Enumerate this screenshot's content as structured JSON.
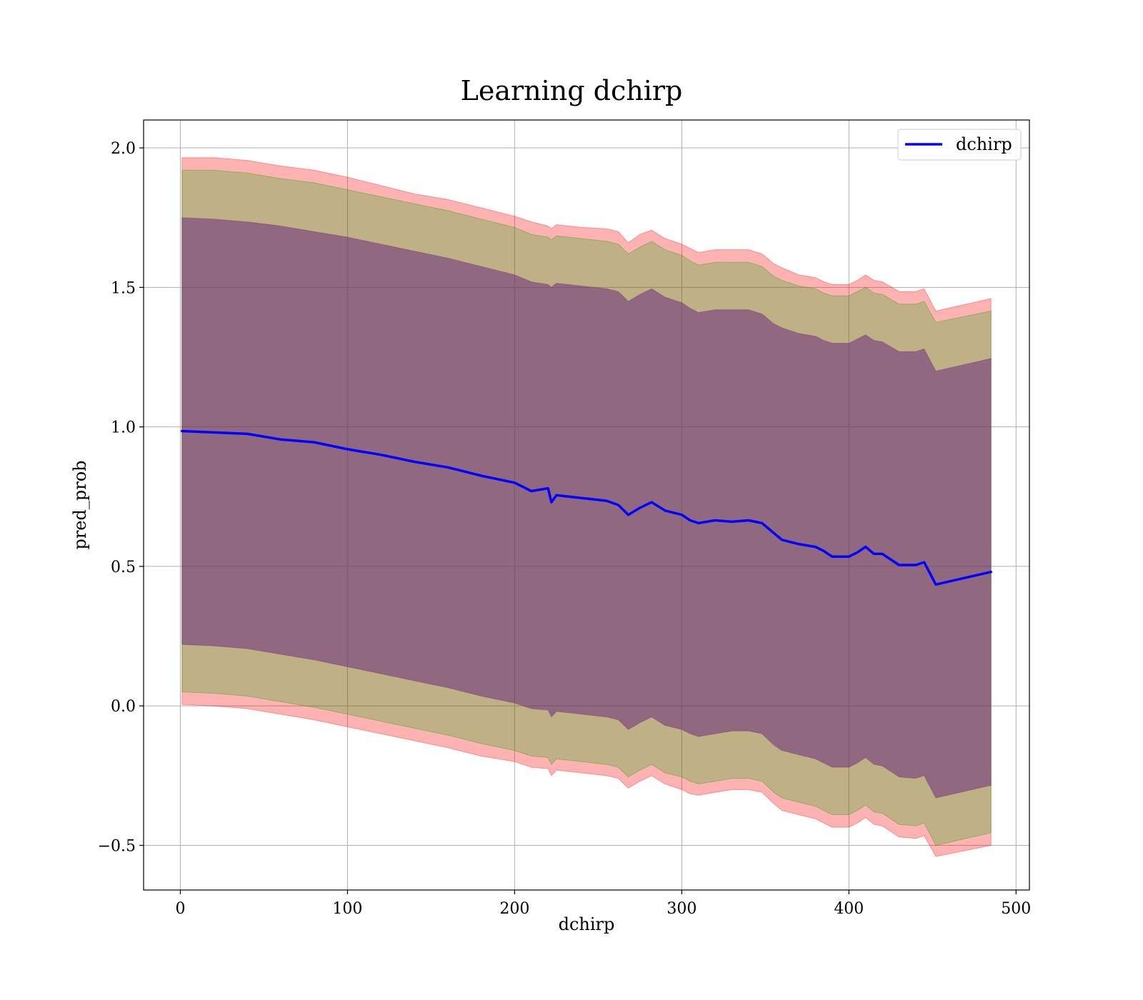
{
  "chart_data": {
    "type": "line",
    "title": "Learning dchirp",
    "xlabel": "dchirp",
    "ylabel": "pred_prob",
    "xlim": [
      -22,
      508
    ],
    "ylim": [
      -0.66,
      2.1
    ],
    "grid": true,
    "legend_position": "top-right",
    "x_ticks": [
      0,
      100,
      200,
      300,
      400,
      500
    ],
    "x_tick_labels": [
      "0",
      "100",
      "200",
      "300",
      "400",
      "500"
    ],
    "y_ticks": [
      -0.5,
      0.0,
      0.5,
      1.0,
      1.5,
      2.0
    ],
    "y_tick_labels": [
      "−0.5",
      "0.0",
      "0.5",
      "1.0",
      "1.5",
      "2.0"
    ],
    "x": [
      1,
      20,
      40,
      60,
      80,
      100,
      120,
      140,
      160,
      180,
      200,
      210,
      220,
      222,
      225,
      240,
      255,
      262,
      268,
      275,
      282,
      290,
      300,
      305,
      310,
      320,
      330,
      340,
      348,
      355,
      360,
      370,
      380,
      385,
      390,
      400,
      405,
      410,
      415,
      420,
      430,
      440,
      445,
      452,
      485
    ],
    "series": [
      {
        "name": "dchirp",
        "color": "#0000ff",
        "values": [
          0.985,
          0.98,
          0.975,
          0.955,
          0.945,
          0.92,
          0.9,
          0.875,
          0.855,
          0.825,
          0.8,
          0.77,
          0.78,
          0.73,
          0.755,
          0.745,
          0.735,
          0.72,
          0.685,
          0.71,
          0.73,
          0.7,
          0.685,
          0.665,
          0.655,
          0.665,
          0.66,
          0.665,
          0.655,
          0.62,
          0.595,
          0.58,
          0.57,
          0.555,
          0.535,
          0.535,
          0.55,
          0.57,
          0.545,
          0.545,
          0.505,
          0.505,
          0.515,
          0.435,
          0.48
        ]
      }
    ],
    "bands": [
      {
        "color": "#ff0000",
        "opacity": 0.3,
        "upper": [
          1.965,
          1.965,
          1.955,
          1.935,
          1.92,
          1.895,
          1.865,
          1.835,
          1.815,
          1.785,
          1.755,
          1.735,
          1.72,
          1.71,
          1.725,
          1.715,
          1.71,
          1.7,
          1.66,
          1.69,
          1.705,
          1.675,
          1.655,
          1.64,
          1.625,
          1.635,
          1.635,
          1.635,
          1.62,
          1.585,
          1.57,
          1.545,
          1.535,
          1.52,
          1.51,
          1.51,
          1.525,
          1.545,
          1.525,
          1.52,
          1.485,
          1.485,
          1.495,
          1.415,
          1.46
        ],
        "lower": [
          0.005,
          0.0,
          -0.01,
          -0.03,
          -0.05,
          -0.075,
          -0.1,
          -0.125,
          -0.15,
          -0.18,
          -0.2,
          -0.22,
          -0.225,
          -0.25,
          -0.23,
          -0.24,
          -0.25,
          -0.26,
          -0.295,
          -0.27,
          -0.25,
          -0.28,
          -0.3,
          -0.315,
          -0.32,
          -0.31,
          -0.3,
          -0.3,
          -0.31,
          -0.35,
          -0.375,
          -0.39,
          -0.405,
          -0.42,
          -0.435,
          -0.435,
          -0.42,
          -0.4,
          -0.425,
          -0.43,
          -0.47,
          -0.475,
          -0.465,
          -0.54,
          -0.5
        ]
      },
      {
        "color": "#00aa00",
        "opacity": 0.25,
        "upper": [
          1.92,
          1.92,
          1.91,
          1.89,
          1.875,
          1.85,
          1.825,
          1.8,
          1.775,
          1.745,
          1.715,
          1.69,
          1.68,
          1.67,
          1.685,
          1.675,
          1.665,
          1.655,
          1.62,
          1.645,
          1.665,
          1.635,
          1.615,
          1.595,
          1.58,
          1.59,
          1.59,
          1.59,
          1.575,
          1.54,
          1.525,
          1.505,
          1.495,
          1.48,
          1.47,
          1.47,
          1.485,
          1.5,
          1.48,
          1.475,
          1.44,
          1.44,
          1.45,
          1.375,
          1.415
        ],
        "lower": [
          0.05,
          0.045,
          0.035,
          0.015,
          -0.005,
          -0.03,
          -0.055,
          -0.08,
          -0.105,
          -0.135,
          -0.16,
          -0.18,
          -0.185,
          -0.21,
          -0.19,
          -0.2,
          -0.21,
          -0.22,
          -0.255,
          -0.23,
          -0.21,
          -0.24,
          -0.255,
          -0.27,
          -0.28,
          -0.27,
          -0.26,
          -0.26,
          -0.27,
          -0.31,
          -0.33,
          -0.345,
          -0.36,
          -0.375,
          -0.39,
          -0.39,
          -0.375,
          -0.355,
          -0.38,
          -0.385,
          -0.425,
          -0.43,
          -0.42,
          -0.5,
          -0.455
        ]
      },
      {
        "color": "#6a2d7a",
        "opacity": 0.55,
        "upper": [
          1.75,
          1.745,
          1.735,
          1.72,
          1.7,
          1.68,
          1.655,
          1.63,
          1.605,
          1.575,
          1.545,
          1.52,
          1.51,
          1.5,
          1.515,
          1.505,
          1.495,
          1.485,
          1.45,
          1.475,
          1.495,
          1.465,
          1.445,
          1.425,
          1.41,
          1.42,
          1.42,
          1.42,
          1.405,
          1.37,
          1.355,
          1.335,
          1.325,
          1.31,
          1.3,
          1.3,
          1.315,
          1.33,
          1.31,
          1.305,
          1.27,
          1.27,
          1.28,
          1.2,
          1.245
        ],
        "lower": [
          0.22,
          0.215,
          0.205,
          0.185,
          0.165,
          0.14,
          0.115,
          0.09,
          0.065,
          0.035,
          0.01,
          -0.01,
          -0.015,
          -0.04,
          -0.02,
          -0.03,
          -0.04,
          -0.05,
          -0.085,
          -0.06,
          -0.04,
          -0.07,
          -0.085,
          -0.1,
          -0.11,
          -0.1,
          -0.09,
          -0.09,
          -0.1,
          -0.14,
          -0.16,
          -0.175,
          -0.19,
          -0.205,
          -0.22,
          -0.22,
          -0.205,
          -0.185,
          -0.21,
          -0.215,
          -0.255,
          -0.26,
          -0.25,
          -0.33,
          -0.285
        ]
      }
    ]
  }
}
